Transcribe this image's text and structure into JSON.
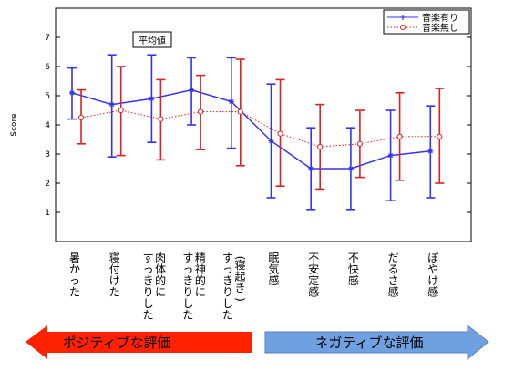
{
  "chart_data": {
    "type": "line",
    "title": "",
    "xlabel": "",
    "ylabel": "Score",
    "ylim": [
      0,
      8
    ],
    "yticks": [
      1,
      2,
      3,
      4,
      5,
      6,
      7
    ],
    "categories": [
      "暑かった",
      "寝付けた",
      "肉体的にすっきりした",
      "精神的にすっきりした",
      "(寝起き)すっきりした",
      "眠気感",
      "不安定感",
      "不快感",
      "だるさ感",
      "ぼやけ感"
    ],
    "category_lines": [
      [
        "暑かった"
      ],
      [
        "寝付けた"
      ],
      [
        "肉体的に",
        "すっきりした"
      ],
      [
        "精神的に",
        "すっきりした"
      ],
      [
        "(寝起き)",
        "すっきりした"
      ],
      [
        "眠気感"
      ],
      [
        "不安定感"
      ],
      [
        "不快感"
      ],
      [
        "だるさ感"
      ],
      [
        "ぼやけ感"
      ]
    ],
    "annotation": "平均値",
    "legend": {
      "placement": "top-right"
    },
    "series": [
      {
        "name": "音楽有り",
        "color": "#3333ee",
        "marker": "star",
        "line": "solid",
        "values": [
          5.1,
          4.7,
          4.9,
          5.2,
          4.8,
          3.45,
          2.5,
          2.5,
          2.95,
          3.1
        ],
        "err_low": [
          4.2,
          2.9,
          3.4,
          4.0,
          3.2,
          1.5,
          1.1,
          1.1,
          1.4,
          1.5
        ],
        "err_high": [
          5.95,
          6.4,
          6.4,
          6.3,
          6.3,
          5.4,
          3.9,
          3.9,
          4.5,
          4.65
        ]
      },
      {
        "name": "音楽無し",
        "color": "#dd2222",
        "marker": "circle",
        "line": "dotted",
        "values": [
          4.25,
          4.5,
          4.2,
          4.45,
          4.45,
          3.7,
          3.25,
          3.35,
          3.6,
          3.6
        ],
        "err_low": [
          3.35,
          2.95,
          2.8,
          3.15,
          2.6,
          1.9,
          1.8,
          2.2,
          2.1,
          2.0
        ],
        "err_high": [
          5.2,
          6.0,
          5.55,
          5.7,
          6.25,
          5.55,
          4.7,
          4.5,
          5.1,
          5.25
        ]
      }
    ]
  },
  "arrows": {
    "left_label": "ポジティブな評価",
    "left_color": "#ff2200",
    "right_label": "ネガティブな評価",
    "right_color": "#6fa0e0"
  }
}
